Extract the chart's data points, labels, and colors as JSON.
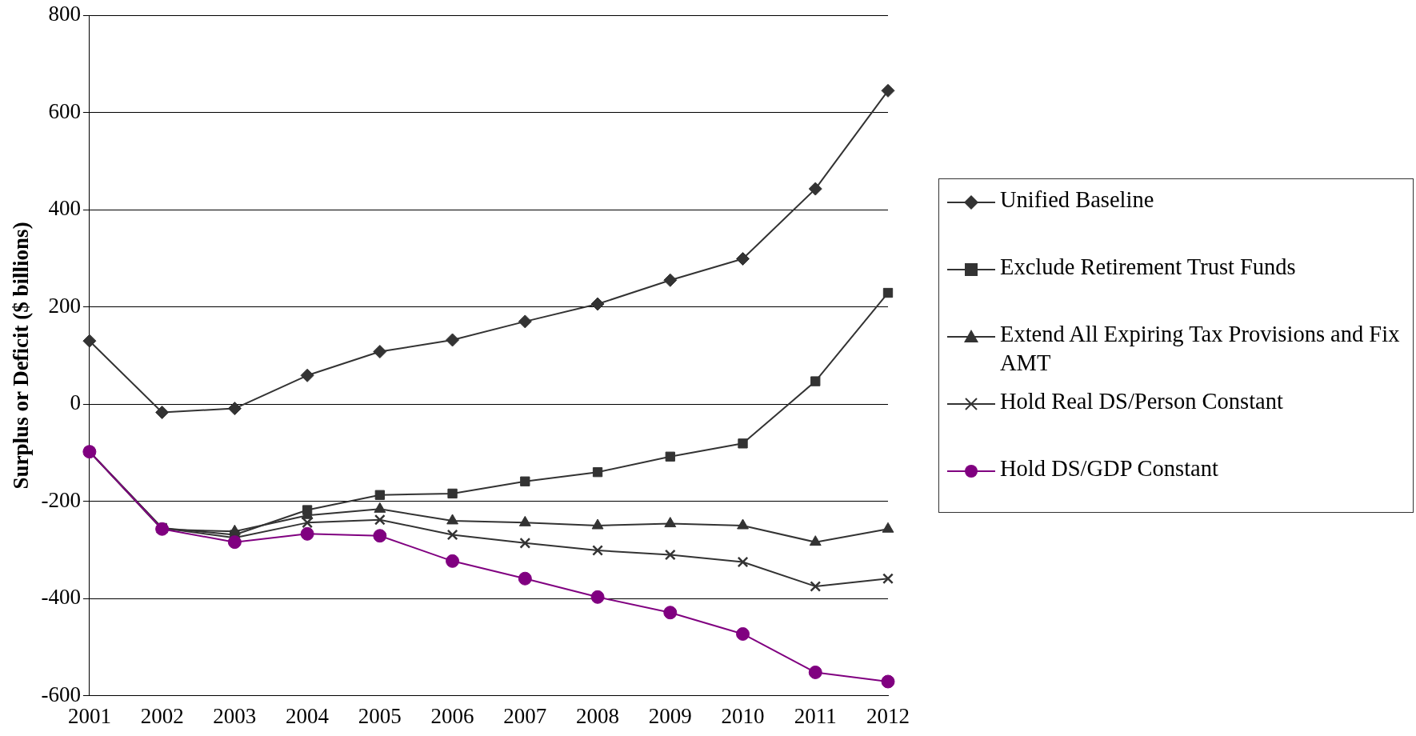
{
  "chart_data": {
    "type": "line",
    "ylabel": "Surplus or Deficit ($ billions)",
    "categories": [
      "2001",
      "2002",
      "2003",
      "2004",
      "2005",
      "2006",
      "2007",
      "2008",
      "2009",
      "2010",
      "2011",
      "2012"
    ],
    "ylim": [
      -600,
      800
    ],
    "yticks": [
      -600,
      -400,
      -200,
      0,
      200,
      400,
      600,
      800
    ],
    "grid": "y",
    "legend": "right",
    "line_style": "solid",
    "series": [
      {
        "name": "Unified Baseline",
        "color": "#333333",
        "marker": "diamond",
        "values": [
          130,
          -17,
          -9,
          59,
          108,
          132,
          170,
          206,
          255,
          299,
          443,
          645
        ]
      },
      {
        "name": "Exclude Retirement Trust Funds",
        "color": "#333333",
        "marker": "square",
        "values": [
          -98,
          -255,
          -269,
          -218,
          -187,
          -184,
          -159,
          -140,
          -108,
          -81,
          47,
          229
        ]
      },
      {
        "name": "Extend All Expiring Tax Provisions and Fix AMT",
        "color": "#333333",
        "marker": "triangle",
        "values": [
          -98,
          -258,
          -262,
          -229,
          -216,
          -240,
          -244,
          -250,
          -246,
          -250,
          -284,
          -257
        ]
      },
      {
        "name": "Hold Real DS/Person Constant",
        "color": "#333333",
        "marker": "cross",
        "values": [
          -98,
          -255,
          -275,
          -244,
          -238,
          -269,
          -286,
          -301,
          -310,
          -325,
          -375,
          -359
        ]
      },
      {
        "name": "Hold DS/GDP Constant",
        "color": "#800080",
        "marker": "circle",
        "values": [
          -98,
          -257,
          -284,
          -267,
          -271,
          -323,
          -359,
          -397,
          -429,
          -473,
          -552,
          -571
        ]
      }
    ]
  }
}
